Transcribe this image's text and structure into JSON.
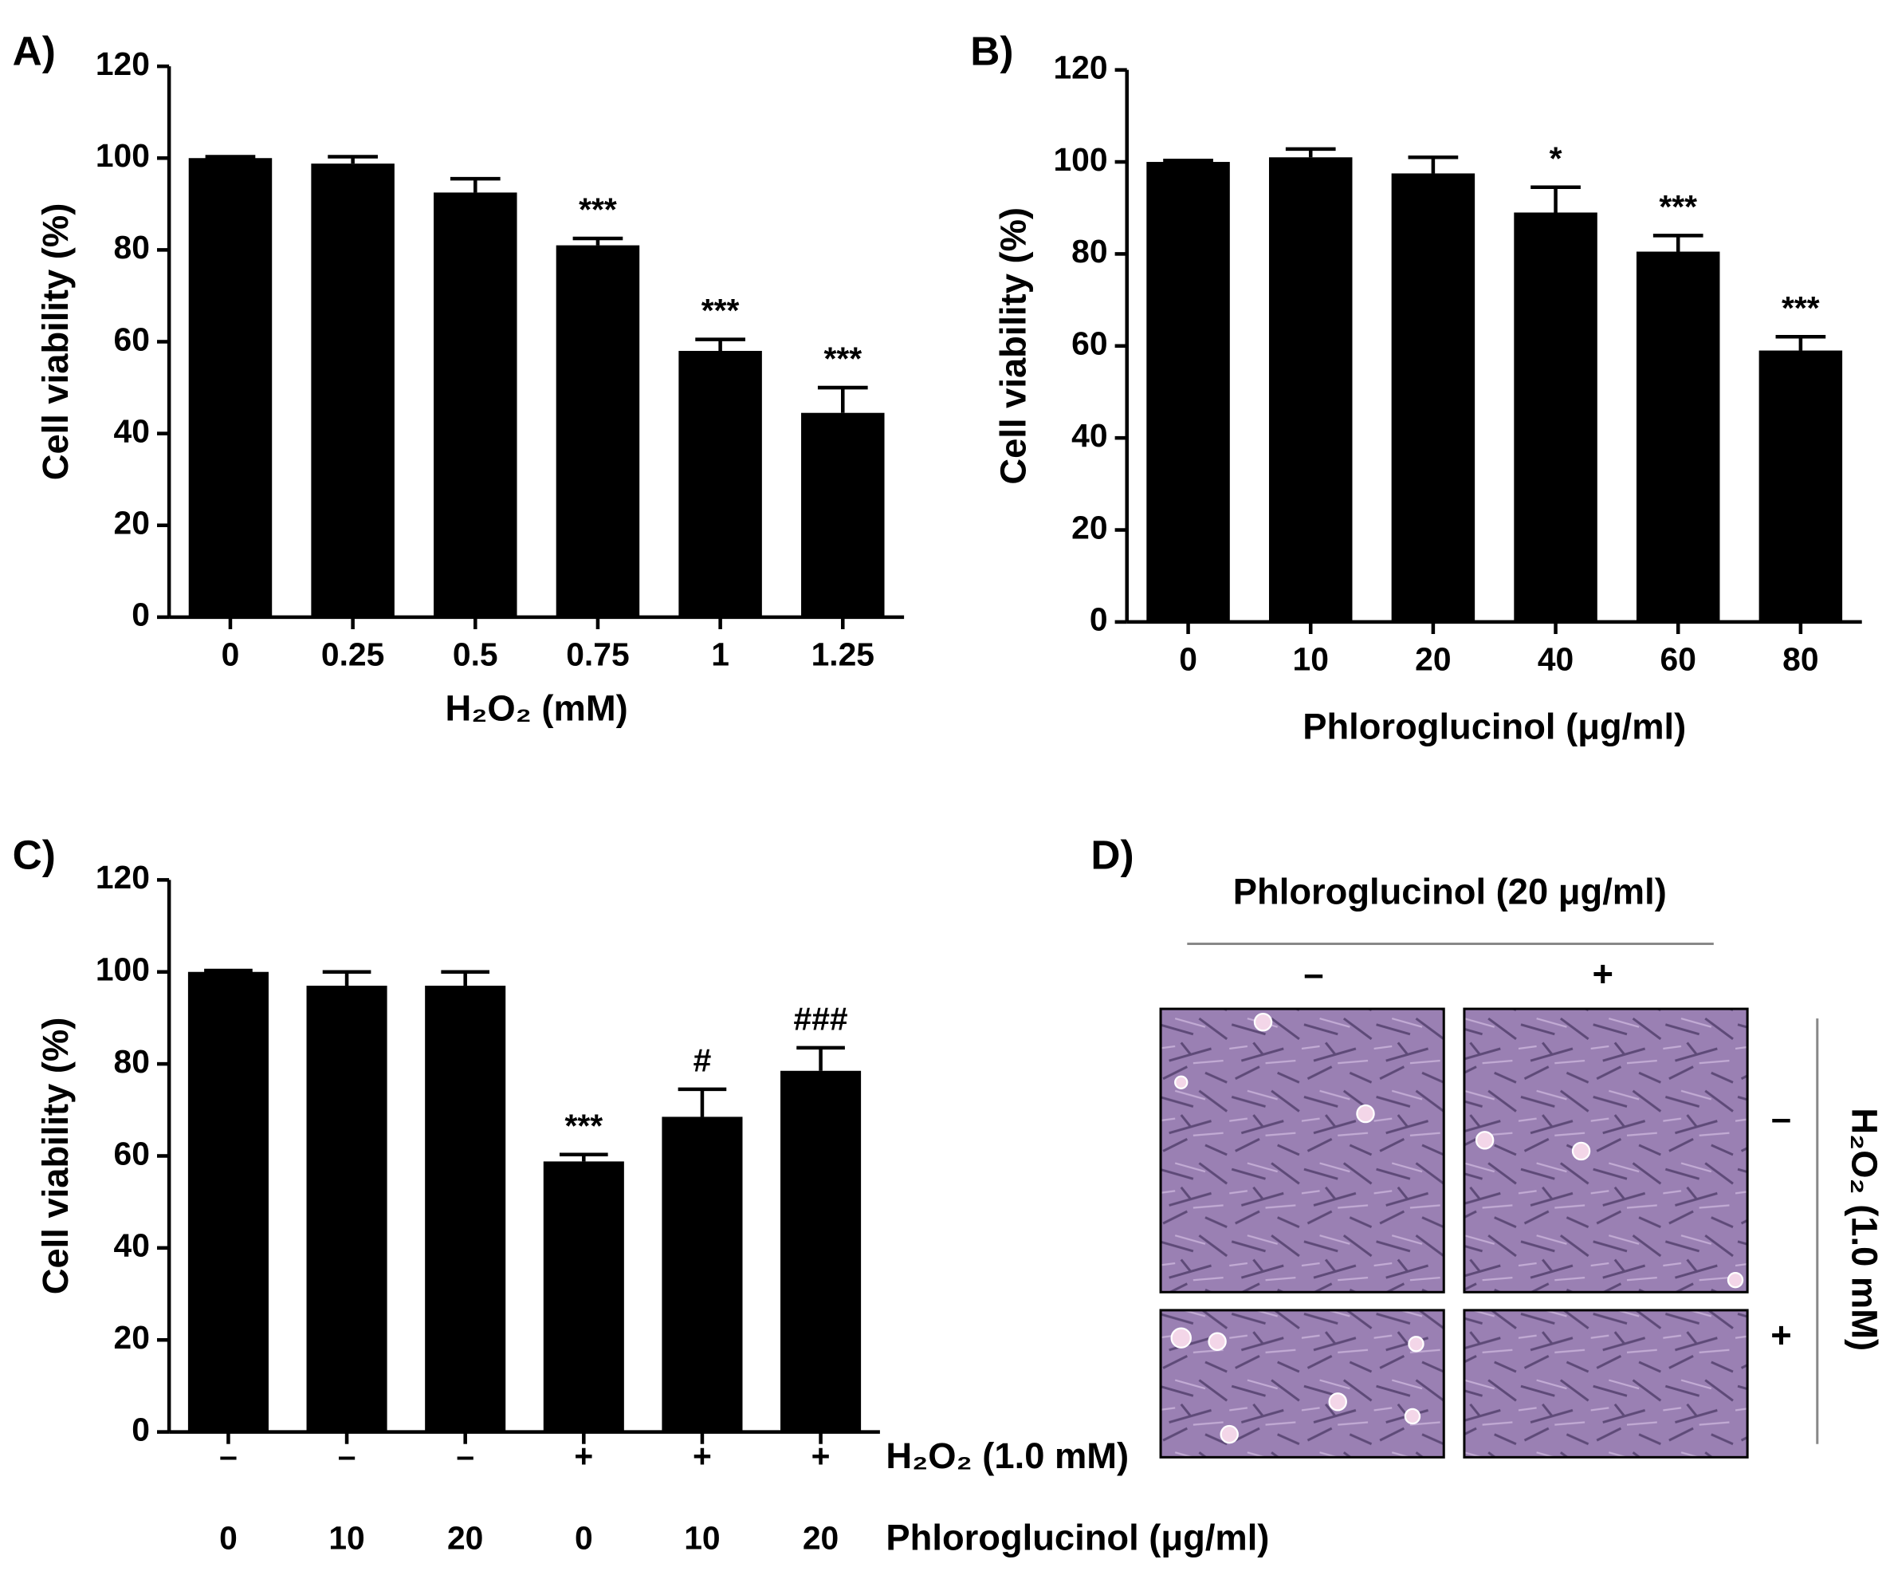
{
  "chart_data": [
    {
      "type": "bar",
      "panel": "A)",
      "ylabel": "Cell viability (%)",
      "xlabel": "H₂O₂ (mM)",
      "categories": [
        "0",
        "0.25",
        "0.5",
        "0.75",
        "1",
        "1.25"
      ],
      "values": [
        100,
        98.8,
        92.5,
        81,
        58,
        44.5
      ],
      "errors": [
        0.3,
        1.5,
        3,
        1.5,
        2.5,
        5.5
      ],
      "annotations": [
        null,
        null,
        null,
        "***",
        "***",
        "***"
      ],
      "color": "#000000",
      "ylim": [
        0,
        120
      ],
      "yticks": [
        0,
        20,
        40,
        60,
        80,
        100,
        120
      ]
    },
    {
      "type": "bar",
      "panel": "B)",
      "ylabel": "Cell viability (%)",
      "xlabel": "Phloroglucinol (μg/ml)",
      "categories": [
        "0",
        "10",
        "20",
        "40",
        "60",
        "80"
      ],
      "values": [
        100,
        101,
        97.5,
        89,
        80.5,
        59
      ],
      "errors": [
        0.3,
        1.8,
        3.5,
        5.5,
        3.5,
        3
      ],
      "annotations": [
        null,
        null,
        null,
        "*",
        "***",
        "***"
      ],
      "color": "#000000",
      "ylim": [
        0,
        120
      ],
      "yticks": [
        0,
        20,
        40,
        60,
        80,
        100,
        120
      ]
    },
    {
      "type": "bar",
      "panel": "C)",
      "ylabel": "Cell viability (%)",
      "categories": [
        [
          "–",
          "0"
        ],
        [
          "–",
          "10"
        ],
        [
          "–",
          "20"
        ],
        [
          "+",
          "0"
        ],
        [
          "+",
          "10"
        ],
        [
          "+",
          "20"
        ]
      ],
      "category_labels": [
        "H₂O₂ (1.0 mM)",
        "Phloroglucinol (μg/ml)"
      ],
      "values": [
        100,
        97,
        97,
        58.8,
        68.5,
        78.5
      ],
      "errors": [
        0.3,
        3,
        3,
        1.5,
        6,
        5
      ],
      "annotations": [
        null,
        null,
        null,
        "***",
        "#",
        "###"
      ],
      "color": "#000000",
      "ylim": [
        0,
        120
      ],
      "yticks": [
        0,
        20,
        40,
        60,
        80,
        100,
        120
      ]
    }
  ],
  "panel_d": {
    "panel": "D)",
    "title": "Phloroglucinol (20 μg/ml)",
    "columns": [
      "–",
      "+"
    ],
    "row_title": "H₂O₂ (1.0 mM)",
    "rows": [
      "–",
      "+"
    ]
  }
}
